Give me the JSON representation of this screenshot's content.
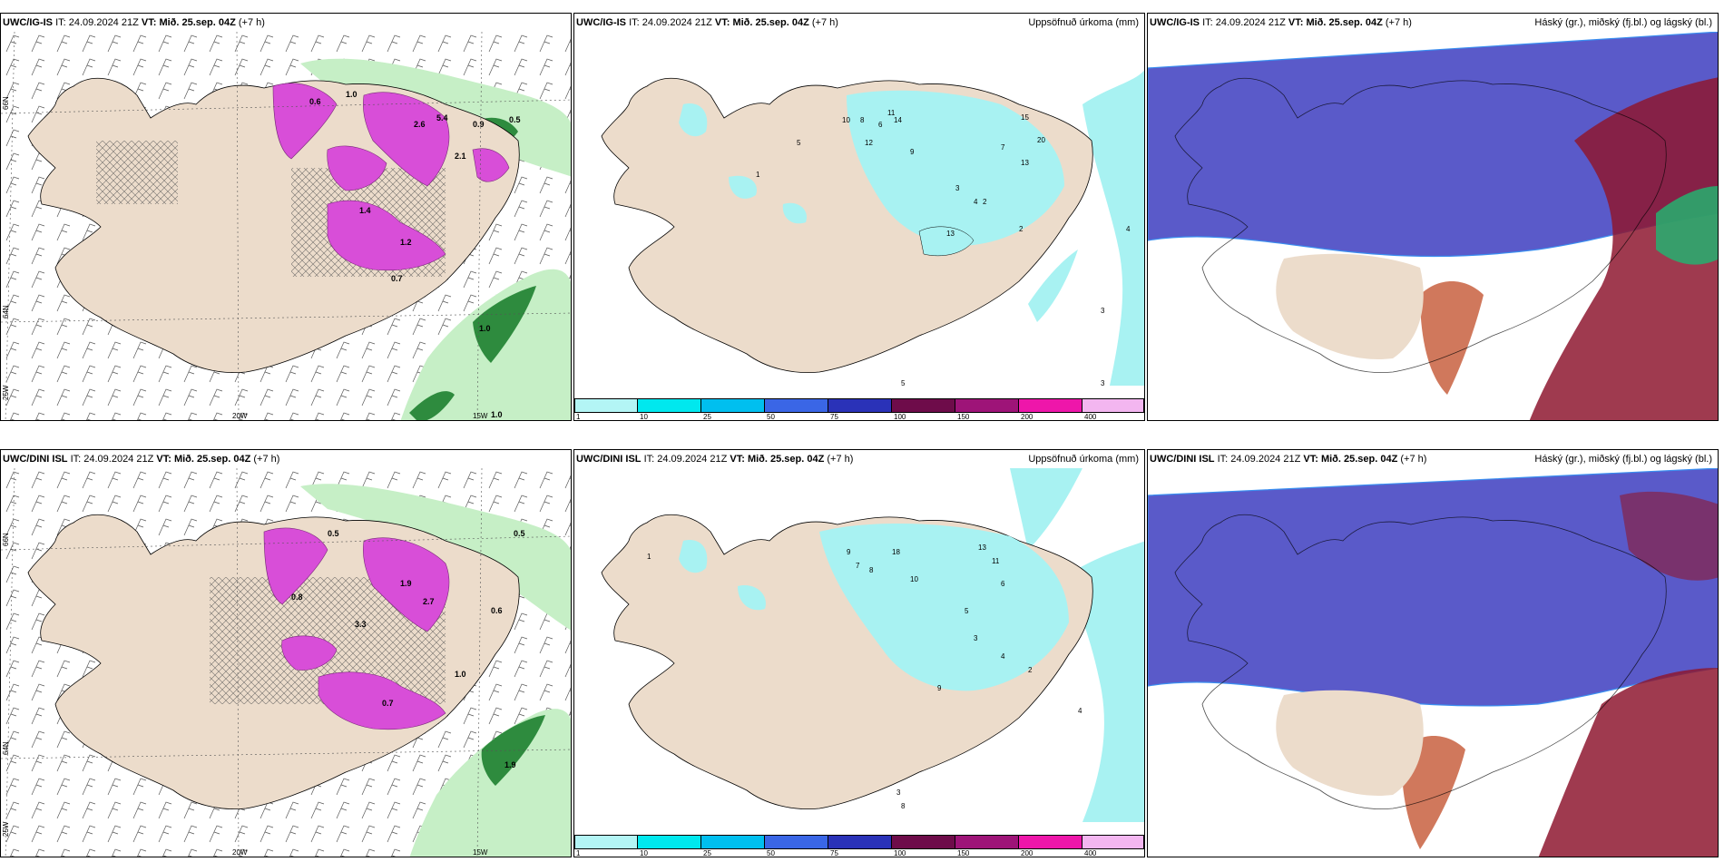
{
  "panels": [
    {
      "model": "UWC/IG-IS",
      "it_label": "IT:",
      "it": "24.09.2024 21Z",
      "vt_label": "VT:",
      "vt": "Mið. 25.sep. 04Z",
      "lead": "(+7 h)",
      "right": ""
    },
    {
      "model": "UWC/IG-IS",
      "it_label": "IT:",
      "it": "24.09.2024 21Z",
      "vt_label": "VT:",
      "vt": "Mið. 25.sep. 04Z",
      "lead": "(+7 h)",
      "right": "Uppsöfnuð úrkoma (mm)"
    },
    {
      "model": "UWC/IG-IS",
      "it_label": "IT:",
      "it": "24.09.2024 21Z",
      "vt_label": "VT:",
      "vt": "Mið. 25.sep. 04Z",
      "lead": "(+7 h)",
      "right": "Háský (gr.), miðský (fj.bl.) og lágský (bl.)"
    },
    {
      "model": "UWC/DINI ISL",
      "it_label": "IT:",
      "it": "24.09.2024 21Z",
      "vt_label": "VT:",
      "vt": "Mið. 25.sep. 04Z",
      "lead": "(+7 h)",
      "right": ""
    },
    {
      "model": "UWC/DINI ISL",
      "it_label": "IT:",
      "it": "24.09.2024 21Z",
      "vt_label": "VT:",
      "vt": "Mið. 25.sep. 04Z",
      "lead": "(+7 h)",
      "right": "Uppsöfnuð úrkoma (mm)"
    },
    {
      "model": "UWC/DINI ISL",
      "it_label": "IT:",
      "it": "24.09.2024 21Z",
      "vt_label": "VT:",
      "vt": "Mið. 25.sep. 04Z",
      "lead": "(+7 h)",
      "right": "Háský (gr.), miðský (fj.bl.) og lágský (bl.)"
    }
  ],
  "axis_labels": {
    "lat66": "66N",
    "lat64": "64N",
    "lon25": "25W",
    "lon20": "20W",
    "lon15": "15W"
  },
  "precip_colorbar": {
    "ticks": [
      "1",
      "10",
      "25",
      "50",
      "75",
      "100",
      "150",
      "200",
      "400"
    ],
    "colors": [
      "#b3f5f5",
      "#00e8ee",
      "#00bfef",
      "#3a66e6",
      "#2a32b8",
      "#6e0c4a",
      "#9e1478",
      "#ee16aa",
      "#f3b6f0"
    ]
  },
  "colors": {
    "land": "#ecdccb",
    "hatch": "#555555",
    "magenta": "#d84ed8",
    "green_light": "#c6efc6",
    "green_dark": "#1f7a2e",
    "cyan": "#a8f2f2",
    "cloud_high": "#5a5ac9",
    "cloud_low": "#8e1730"
  },
  "precip_labels_top": [
    "5",
    "6",
    "8",
    "10",
    "11",
    "14",
    "12",
    "9",
    "7",
    "15",
    "20",
    "13",
    "4",
    "3",
    "2",
    "1"
  ],
  "precip_labels_bottom": [
    "9",
    "7",
    "8",
    "18",
    "10",
    "13",
    "11",
    "6",
    "5",
    "4",
    "3",
    "2",
    "1"
  ],
  "snow_labels_top": [
    "0.6",
    "0.5",
    "0.9",
    "1.0",
    "2.6",
    "5.4",
    "2.1",
    "0.7",
    "1.4",
    "1.2"
  ],
  "snow_labels_bottom": [
    "0.5",
    "0.8",
    "1.9",
    "2.7",
    "3.3",
    "1.0",
    "0.6",
    "0.7"
  ]
}
